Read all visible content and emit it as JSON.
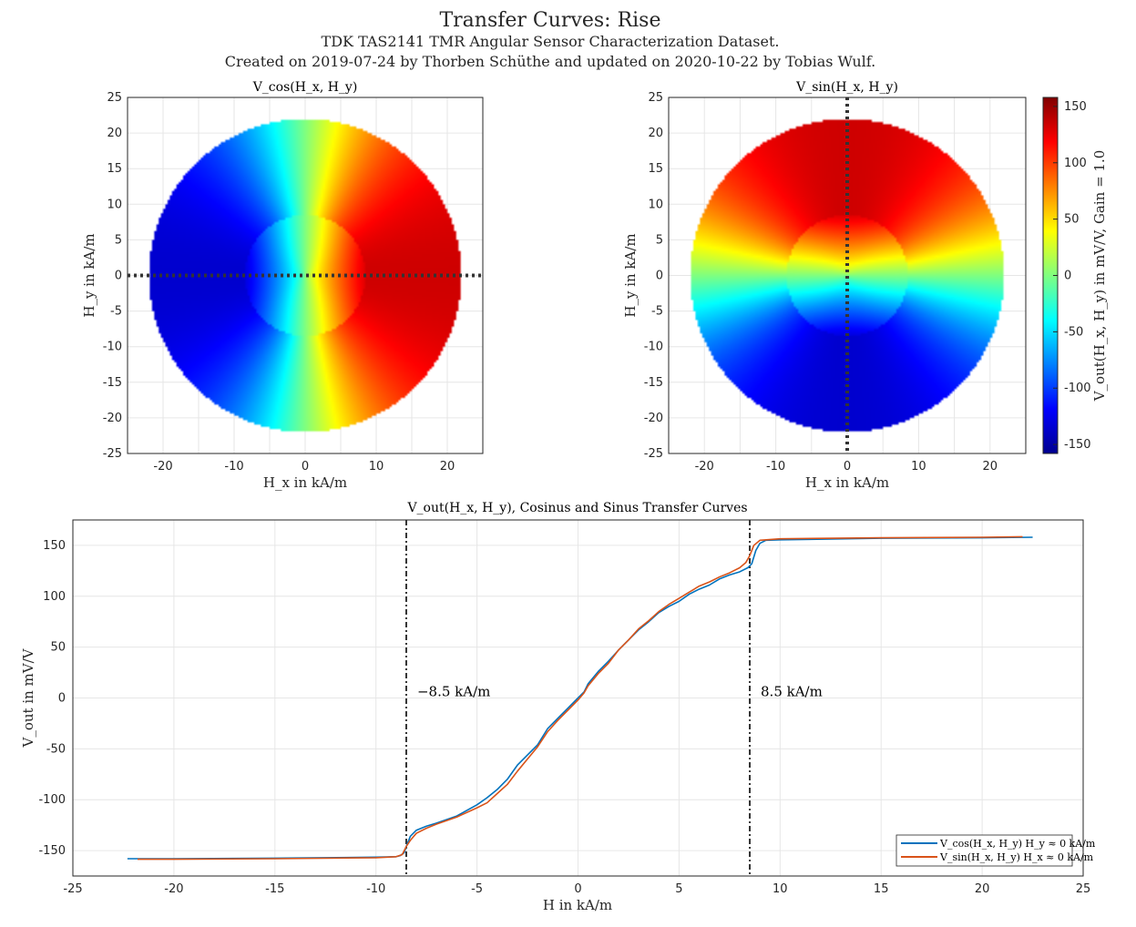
{
  "figure": {
    "title": "Transfer Curves: Rise",
    "subtitle": "TDK TAS2141 TMR Angular Sensor Characterization Dataset.",
    "credit": "Created on 2019-07-24 by Thorben Schüthe and updated on 2020-10-22 by Tobias Wulf."
  },
  "chart_data": [
    {
      "type": "heatmap",
      "title": "V_cos(H_x, H_y)",
      "xlabel": "H_x in kA/m",
      "ylabel": "H_y in kA/m",
      "xlim": [
        -25,
        25
      ],
      "ylim": [
        -25,
        25
      ],
      "xticks": [
        -20,
        -10,
        0,
        10,
        20
      ],
      "yticks": [
        -25,
        -20,
        -15,
        -10,
        -5,
        0,
        5,
        10,
        15,
        20,
        25
      ],
      "field_radius_kA_m": 22,
      "inner_radius_kA_m": 8.5,
      "colormap": "jet",
      "guide_line": "H_y = 0",
      "grid": true
    },
    {
      "type": "heatmap",
      "title": "V_sin(H_x, H_y)",
      "xlabel": "H_x in kA/m",
      "ylabel": "H_y in kA/m",
      "xlim": [
        -25,
        25
      ],
      "ylim": [
        -25,
        25
      ],
      "xticks": [
        -20,
        -10,
        0,
        10,
        20
      ],
      "yticks": [
        -25,
        -20,
        -15,
        -10,
        -5,
        0,
        5,
        10,
        15,
        20,
        25
      ],
      "field_radius_kA_m": 22,
      "inner_radius_kA_m": 8.5,
      "colormap": "jet",
      "guide_line": "H_x = 0",
      "grid": true,
      "colorbar": {
        "label": "V_out(H_x, H_y) in mV/V, Gain = 1.0",
        "range": [
          -158,
          158
        ],
        "ticks": [
          -150,
          -100,
          -50,
          0,
          50,
          100,
          150
        ]
      }
    },
    {
      "type": "line",
      "title": "V_out(H_x, H_y), Cosinus and Sinus Transfer Curves",
      "xlabel": "H in kA/m",
      "ylabel": "V_out in mV/V",
      "xlim": [
        -25,
        25
      ],
      "ylim": [
        -175,
        175
      ],
      "xticks": [
        -25,
        -20,
        -15,
        -10,
        -5,
        0,
        5,
        10,
        15,
        20,
        25
      ],
      "yticks": [
        -150,
        -100,
        -50,
        0,
        50,
        100,
        150
      ],
      "grid": true,
      "legend_position": "bottom-right",
      "vlines": [
        {
          "x": -8.5,
          "label": "−8.5 kA/m"
        },
        {
          "x": 8.5,
          "label": "8.5 kA/m"
        }
      ],
      "series": [
        {
          "name": "V_cos(H_x, H_y) H_y ≈ 0 kA/m",
          "color": "#0072BD",
          "x": [
            -22.3,
            -20,
            -15,
            -10,
            -9,
            -8.8,
            -8.6,
            -8.5,
            -8.3,
            -8,
            -7.5,
            -7,
            -6,
            -5,
            -4.5,
            -4,
            -3.5,
            -3,
            -2.5,
            -2,
            -1.5,
            -1,
            -0.5,
            0,
            0.3,
            0.5,
            1,
            1.5,
            2,
            2.5,
            3,
            3.5,
            4,
            4.5,
            5,
            5.5,
            6,
            6.5,
            7,
            7.5,
            8,
            8.4,
            8.6,
            8.8,
            9,
            9.3,
            10,
            15,
            20,
            22.5
          ],
          "y": [
            -158,
            -158,
            -157.5,
            -156.5,
            -156,
            -155,
            -152,
            -146,
            -136,
            -130,
            -126,
            -123,
            -116,
            -105,
            -98,
            -90,
            -80,
            -66,
            -56,
            -46,
            -30,
            -20,
            -10,
            0,
            6,
            14,
            26,
            36,
            47,
            57,
            67,
            75,
            84,
            90,
            95,
            102,
            107,
            111,
            117,
            121,
            124,
            128,
            132,
            145,
            152,
            155,
            155.5,
            157,
            157.5,
            158
          ]
        },
        {
          "name": "V_sin(H_x, H_y) H_x ≈ 0 kA/m",
          "color": "#D95319",
          "x": [
            -21.8,
            -20,
            -15,
            -10,
            -9,
            -8.7,
            -8.5,
            -8.3,
            -8,
            -7.5,
            -7,
            -6,
            -5,
            -4.5,
            -4,
            -3.5,
            -3,
            -2.5,
            -2,
            -1.5,
            -1,
            -0.5,
            0,
            0.3,
            0.5,
            1,
            1.5,
            2,
            2.5,
            3,
            3.5,
            4,
            4.5,
            5,
            5.5,
            6,
            6.5,
            7,
            7.5,
            8,
            8.3,
            8.5,
            8.7,
            9,
            10,
            15,
            20,
            22
          ],
          "y": [
            -158.5,
            -158.5,
            -158,
            -157,
            -156,
            -154,
            -146,
            -140,
            -133,
            -128,
            -124,
            -117,
            -108,
            -103,
            -94,
            -85,
            -72,
            -60,
            -48,
            -33,
            -22,
            -12,
            -2,
            5,
            12,
            24,
            34,
            47,
            57,
            68,
            76,
            85,
            92,
            98,
            104,
            110,
            114,
            119,
            123,
            128,
            133,
            140,
            150,
            155,
            156.5,
            157.5,
            158,
            158.5
          ]
        }
      ]
    }
  ]
}
